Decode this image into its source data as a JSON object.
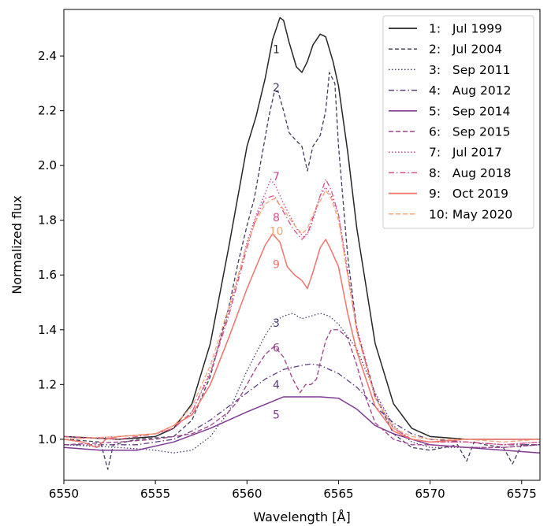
{
  "chart_data": {
    "type": "line",
    "title": "",
    "xlabel": "Wavelength [Å]",
    "ylabel": "Normalized flux",
    "xlim": [
      6550,
      6576
    ],
    "ylim": [
      0.85,
      2.57
    ],
    "xticks": [
      6550,
      6555,
      6560,
      6565,
      6570,
      6575
    ],
    "xtick_labels": [
      "6550",
      "6555",
      "6560",
      "6565",
      "6570",
      "6575"
    ],
    "yticks": [
      1.0,
      1.2,
      1.4,
      1.6,
      1.8,
      2.0,
      2.2,
      2.4
    ],
    "ytick_labels": [
      "1.0",
      "1.2",
      "1.4",
      "1.6",
      "1.8",
      "2.0",
      "2.2",
      "2.4"
    ],
    "grid": false,
    "legend_position": "top-right",
    "series": [
      {
        "name": "1:   Jul 1999",
        "number": "1",
        "color": "#262626",
        "dash": "solid",
        "width": 1.5,
        "x": [
          6550,
          6553,
          6555,
          6556,
          6557,
          6558,
          6559,
          6560,
          6560.5,
          6561,
          6561.4,
          6561.8,
          6562,
          6562.3,
          6562.7,
          6563,
          6563.3,
          6563.6,
          6564,
          6564.3,
          6564.7,
          6565,
          6565.5,
          6566,
          6567,
          6568,
          6569,
          6570,
          6572,
          6574,
          6576
        ],
        "y": [
          1.01,
          1.0,
          1.01,
          1.04,
          1.13,
          1.35,
          1.7,
          2.07,
          2.18,
          2.32,
          2.46,
          2.54,
          2.53,
          2.45,
          2.36,
          2.34,
          2.38,
          2.44,
          2.48,
          2.47,
          2.38,
          2.29,
          2.05,
          1.77,
          1.35,
          1.13,
          1.04,
          1.01,
          1.0,
          1.0,
          1.0
        ],
        "label_x": 6561.6,
        "label_y": 2.425
      },
      {
        "name": "2:   Jul 2004",
        "number": "2",
        "color": "#403e5e",
        "dash": "5,3",
        "width": 1.3,
        "x": [
          6550,
          6552,
          6552.4,
          6552.7,
          6554,
          6556,
          6557,
          6558,
          6559,
          6559.5,
          6560,
          6560.4,
          6560.8,
          6561.2,
          6561.5,
          6561.7,
          6562,
          6562.3,
          6562.7,
          6563,
          6563.3,
          6563.6,
          6564,
          6564.3,
          6564.5,
          6564.8,
          6565,
          6565.5,
          6566,
          6567,
          6568,
          6569,
          6570,
          6571.5,
          6572,
          6572.4,
          6573,
          6574,
          6574.5,
          6575,
          6576
        ],
        "y": [
          1.0,
          0.99,
          0.89,
          0.98,
          1.0,
          1.01,
          1.07,
          1.23,
          1.48,
          1.64,
          1.78,
          1.88,
          2.03,
          2.18,
          2.27,
          2.27,
          2.2,
          2.12,
          2.09,
          2.07,
          1.98,
          2.07,
          2.11,
          2.2,
          2.34,
          2.3,
          2.07,
          1.67,
          1.4,
          1.16,
          1.02,
          0.97,
          0.96,
          0.98,
          0.92,
          0.99,
          0.98,
          0.97,
          0.91,
          0.98,
          0.98
        ],
        "label_x": 6561.6,
        "label_y": 2.285
      },
      {
        "name": "3:   Sep 2011",
        "number": "3",
        "color": "#4d3a73",
        "dash": "1.5,2.5",
        "width": 1.3,
        "x": [
          6550,
          6553,
          6555,
          6556,
          6557,
          6558,
          6559,
          6560,
          6561,
          6561.5,
          6562,
          6562.5,
          6563,
          6563.5,
          6564,
          6564.5,
          6565,
          6566,
          6567,
          6568,
          6569,
          6570,
          6572,
          6574,
          6576
        ],
        "y": [
          0.98,
          0.97,
          0.96,
          0.95,
          0.96,
          1.01,
          1.1,
          1.25,
          1.38,
          1.43,
          1.45,
          1.46,
          1.44,
          1.45,
          1.46,
          1.45,
          1.42,
          1.33,
          1.17,
          1.05,
          0.99,
          0.97,
          0.97,
          0.97,
          0.98
        ],
        "label_x": 6561.6,
        "label_y": 1.425
      },
      {
        "name": "4:   Aug 2012",
        "number": "4",
        "color": "#5e3c80",
        "dash": "7,3,1.5,3",
        "width": 1.3,
        "x": [
          6550,
          6552,
          6554,
          6556,
          6557,
          6558,
          6559,
          6560,
          6561,
          6562,
          6563,
          6563.5,
          6564,
          6565,
          6566,
          6567,
          6568,
          6569,
          6570,
          6572,
          6574,
          6576
        ],
        "y": [
          0.98,
          0.98,
          0.98,
          1.0,
          1.03,
          1.07,
          1.12,
          1.17,
          1.22,
          1.255,
          1.27,
          1.275,
          1.27,
          1.24,
          1.19,
          1.12,
          1.06,
          1.02,
          1.0,
          0.99,
          0.98,
          0.98
        ],
        "label_x": 6561.6,
        "label_y": 1.2
      },
      {
        "name": "5:   Sep 2014",
        "number": "5",
        "color": "#7e3a93",
        "dash": "solid",
        "width": 1.5,
        "x": [
          6550,
          6552,
          6554,
          6556,
          6558,
          6560,
          6562,
          6563,
          6564,
          6565,
          6566,
          6567,
          6568,
          6569,
          6570,
          6572,
          6574,
          6576
        ],
        "y": [
          0.97,
          0.96,
          0.96,
          0.99,
          1.04,
          1.1,
          1.155,
          1.155,
          1.155,
          1.15,
          1.11,
          1.05,
          1.02,
          1.0,
          0.98,
          0.97,
          0.96,
          0.95
        ],
        "label_x": 6561.6,
        "label_y": 1.09
      },
      {
        "name": "6:   Sep 2015",
        "number": "6",
        "color": "#a1418d",
        "dash": "6,3",
        "width": 1.3,
        "x": [
          6550,
          6553,
          6555,
          6556,
          6557,
          6558,
          6559,
          6559.5,
          6560,
          6560.5,
          6561,
          6561.5,
          6562,
          6562.5,
          6562.9,
          6563.2,
          6563.5,
          6563.8,
          6564,
          6564.3,
          6564.6,
          6565,
          6565.5,
          6566,
          6566.5,
          6567,
          6568,
          6569,
          6570,
          6572,
          6574,
          6576
        ],
        "y": [
          0.98,
          0.99,
          1.0,
          1.01,
          1.02,
          1.05,
          1.1,
          1.14,
          1.2,
          1.26,
          1.31,
          1.34,
          1.3,
          1.22,
          1.17,
          1.2,
          1.2,
          1.22,
          1.28,
          1.36,
          1.4,
          1.4,
          1.37,
          1.27,
          1.15,
          1.06,
          1.0,
          0.98,
          0.98,
          0.97,
          0.97,
          0.98
        ],
        "label_x": 6561.6,
        "label_y": 1.335
      },
      {
        "name": "7:   Jul 2017",
        "number": "7",
        "color": "#c94593",
        "dash": "1.5,2.5",
        "width": 1.3,
        "x": [
          6550,
          6553,
          6555,
          6556,
          6557,
          6558,
          6559,
          6560,
          6560.5,
          6561,
          6561.3,
          6561.6,
          6562,
          6562.4,
          6562.8,
          6563.1,
          6563.4,
          6563.7,
          6564,
          6564.3,
          6564.6,
          6565,
          6565.5,
          6566,
          6567,
          6568,
          6569,
          6570,
          6572,
          6574,
          6576
        ],
        "y": [
          1.0,
          1.01,
          1.02,
          1.04,
          1.1,
          1.25,
          1.46,
          1.72,
          1.82,
          1.9,
          1.95,
          1.92,
          1.86,
          1.81,
          1.76,
          1.74,
          1.76,
          1.82,
          1.89,
          1.92,
          1.89,
          1.82,
          1.62,
          1.41,
          1.16,
          1.04,
          1.0,
          0.99,
          0.99,
          0.98,
          0.99
        ],
        "label_x": 6561.6,
        "label_y": 1.96
      },
      {
        "name": "8:   Aug 2018",
        "number": "8",
        "color": "#dd4f87",
        "dash": "7,3,1.5,3",
        "width": 1.3,
        "x": [
          6550,
          6553,
          6555,
          6556,
          6557,
          6558,
          6559,
          6560,
          6560.5,
          6561,
          6561.5,
          6562,
          6562.5,
          6563,
          6563.3,
          6563.6,
          6564,
          6564.3,
          6564.6,
          6565,
          6565.5,
          6566,
          6567,
          6568,
          6569,
          6570,
          6572,
          6574,
          6576
        ],
        "y": [
          1.01,
          1.0,
          1.02,
          1.04,
          1.1,
          1.24,
          1.45,
          1.7,
          1.81,
          1.88,
          1.89,
          1.83,
          1.77,
          1.73,
          1.75,
          1.81,
          1.89,
          1.95,
          1.91,
          1.82,
          1.6,
          1.4,
          1.15,
          1.04,
          1.0,
          0.99,
          0.99,
          0.98,
          0.99
        ],
        "label_x": 6561.6,
        "label_y": 1.81
      },
      {
        "name": "9:   Oct 2019",
        "number": "9",
        "color": "#f0746b",
        "dash": "solid",
        "width": 1.5,
        "x": [
          6550,
          6551,
          6551.8,
          6552.3,
          6553,
          6555,
          6556,
          6557,
          6558,
          6559,
          6560,
          6560.5,
          6561,
          6561.4,
          6561.8,
          6562.2,
          6562.6,
          6563,
          6563.3,
          6563.6,
          6564,
          6564.3,
          6564.6,
          6565,
          6565.5,
          6566,
          6567,
          6568,
          6569,
          6570,
          6572,
          6574,
          6576
        ],
        "y": [
          1.0,
          0.99,
          0.97,
          1.0,
          1.01,
          1.02,
          1.05,
          1.09,
          1.2,
          1.37,
          1.55,
          1.63,
          1.71,
          1.75,
          1.72,
          1.63,
          1.6,
          1.58,
          1.55,
          1.61,
          1.7,
          1.73,
          1.69,
          1.63,
          1.46,
          1.32,
          1.12,
          1.03,
          1.0,
          0.99,
          1.0,
          1.0,
          1.0
        ],
        "label_x": 6561.6,
        "label_y": 1.64
      },
      {
        "name": "10: May 2020",
        "number": "10",
        "color": "#f5a576",
        "dash": "6,3",
        "width": 1.3,
        "x": [
          6550,
          6553,
          6555,
          6556,
          6557,
          6558,
          6559,
          6560,
          6560.5,
          6561,
          6561.5,
          6562,
          6562.5,
          6563,
          6563.3,
          6563.6,
          6564,
          6564.3,
          6564.6,
          6565,
          6565.5,
          6566,
          6567,
          6568,
          6569,
          6570,
          6572,
          6574,
          6576
        ],
        "y": [
          1.0,
          1.01,
          1.02,
          1.05,
          1.12,
          1.27,
          1.48,
          1.71,
          1.8,
          1.86,
          1.88,
          1.84,
          1.79,
          1.75,
          1.77,
          1.82,
          1.87,
          1.91,
          1.88,
          1.8,
          1.6,
          1.39,
          1.15,
          1.04,
          1.01,
          1.0,
          1.0,
          0.99,
          1.0
        ],
        "label_x": 6561.6,
        "label_y": 1.76
      }
    ]
  }
}
